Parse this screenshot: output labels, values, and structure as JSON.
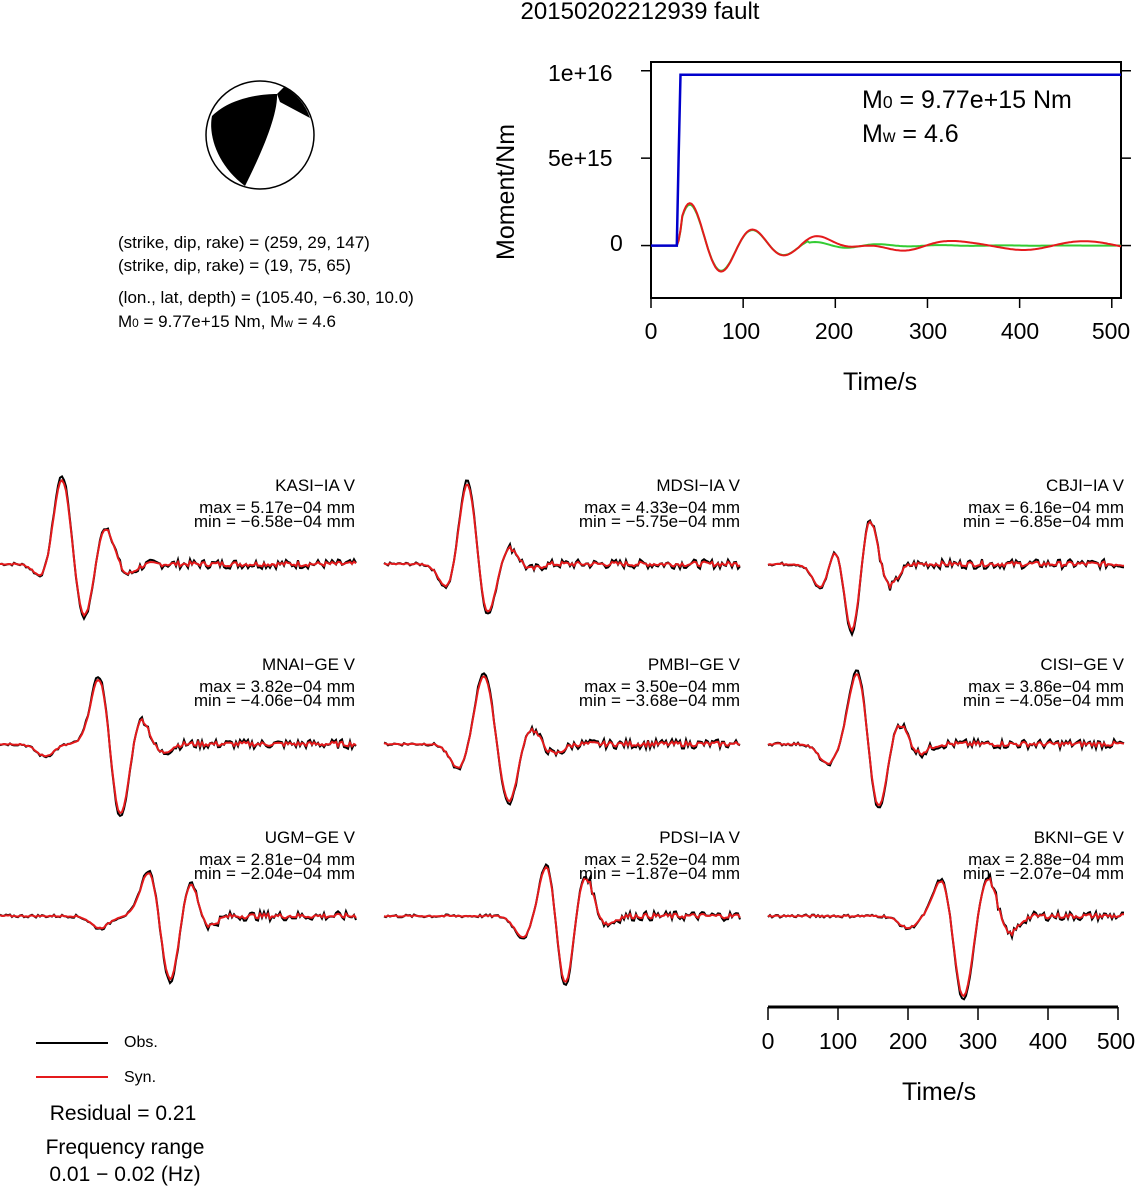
{
  "title": "20150202212939 fault",
  "focal_info": {
    "line1": "(strike, dip, rake) = (259, 29, 147)",
    "line2": "(strike, dip, rake) = (19, 75, 65)",
    "line3": "(lon., lat, depth) = (105.40, −6.30, 10.0)",
    "m0_label": "M",
    "m0_sub": "0",
    "m0_value": " = 9.77e+15 Nm, M",
    "mw_sub": "w",
    "mw_value": " = 4.6"
  },
  "moment_plot": {
    "ylabel": "Moment/Nm",
    "xlabel": "Time/s",
    "yticks": [
      "1e+16",
      "5e+15",
      "0"
    ],
    "xticks": [
      "0",
      "100",
      "200",
      "300",
      "400",
      "500"
    ],
    "annot_m0_label": "M",
    "annot_m0_sub": "0",
    "annot_m0_value": " = 9.77e+15 Nm",
    "annot_mw_label": "M",
    "annot_mw_sub": "w",
    "annot_mw_value": " = 4.6"
  },
  "stations": [
    {
      "name": "KASI−IA V",
      "max": "max = 5.17e−04 mm",
      "min": "min = −6.58e−04 mm"
    },
    {
      "name": "MDSI−IA V",
      "max": "max = 4.33e−04 mm",
      "min": "min = −5.75e−04 mm"
    },
    {
      "name": "CBJI−IA V",
      "max": "max = 6.16e−04 mm",
      "min": "min = −6.85e−04 mm"
    },
    {
      "name": "MNAI−GE V",
      "max": "max = 3.82e−04 mm",
      "min": "min = −4.06e−04 mm"
    },
    {
      "name": "PMBI−GE V",
      "max": "max = 3.50e−04 mm",
      "min": "min = −3.68e−04 mm"
    },
    {
      "name": "CISI−GE V",
      "max": "max = 3.86e−04 mm",
      "min": "min = −4.05e−04 mm"
    },
    {
      "name": "UGM−GE V",
      "max": "max = 2.81e−04 mm",
      "min": "min = −2.04e−04 mm"
    },
    {
      "name": "PDSI−IA V",
      "max": "max = 2.52e−04 mm",
      "min": "min = −1.87e−04 mm"
    },
    {
      "name": "BKNI−GE V",
      "max": "max = 2.88e−04 mm",
      "min": "min = −2.07e−04 mm"
    }
  ],
  "wave_axis": {
    "xlabel": "Time/s",
    "xticks": [
      "0",
      "100",
      "200",
      "300",
      "400",
      "500"
    ]
  },
  "legend": {
    "obs": "Obs.",
    "syn": "Syn."
  },
  "residual": "Residual = 0.21",
  "freq_label": "Frequency range",
  "freq_value": "0.01 − 0.02 (Hz)",
  "colors": {
    "obs": "#000000",
    "syn": "#e41a1c",
    "moment": "#0000cc",
    "stf_green": "#33cc33"
  },
  "chart_data": [
    {
      "type": "line",
      "ylabel": "Moment/Nm",
      "xlabel": "Time/s",
      "xlim": [
        0,
        510
      ],
      "ylim": [
        -3000000000000000.0,
        1.05e+16
      ],
      "series": [
        {
          "x": [
            0,
            28,
            30,
            32,
            35,
            510
          ],
          "y": [
            0,
            0,
            5000000000000000.0,
            9770000000000000.0,
            9770000000000000.0,
            9770000000000000.0
          ]
        }
      ]
    },
    {
      "type": "line",
      "xlim": [
        0,
        510
      ],
      "stations": [
        "KASI−IA V",
        "MDSI−IA V",
        "CBJI−IA V",
        "MNAI−GE V",
        "PMBI−GE V",
        "CISI−GE V",
        "UGM−GE V",
        "PDSI−IA V",
        "BKNI−GE V"
      ],
      "series": [
        {
          "name": "Obs."
        },
        {
          "name": "Syn."
        }
      ]
    }
  ]
}
